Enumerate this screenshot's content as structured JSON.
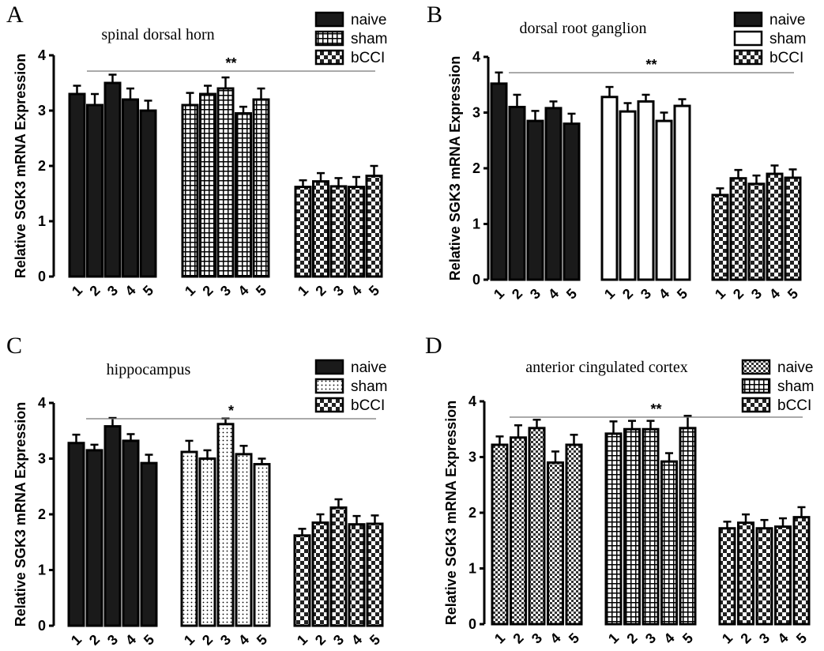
{
  "colors": {
    "ink": "#000000",
    "background": "#ffffff",
    "bar_dark": "#1a1a1a",
    "bracket": "#777777"
  },
  "chart_data": [
    {
      "panel": "A",
      "type": "bar",
      "title": "spinal dorsal horn",
      "ylabel": "Relative SGK3 mRNA Expression",
      "ylim": [
        0,
        4
      ],
      "yticks": [
        "0",
        "1",
        "2",
        "3",
        "4"
      ],
      "significance": "**",
      "legend_position": "top-right",
      "categories": [
        "1",
        "2",
        "3",
        "4",
        "5"
      ],
      "series": [
        {
          "name": "naive",
          "pattern": "solid",
          "values": [
            3.3,
            3.1,
            3.5,
            3.2,
            3.0
          ],
          "errors": [
            0.15,
            0.2,
            0.15,
            0.2,
            0.18
          ]
        },
        {
          "name": "sham",
          "pattern": "grid",
          "values": [
            3.1,
            3.3,
            3.4,
            2.95,
            3.2
          ],
          "errors": [
            0.22,
            0.15,
            0.2,
            0.12,
            0.2
          ]
        },
        {
          "name": "bCCI",
          "pattern": "checker",
          "values": [
            1.62,
            1.72,
            1.63,
            1.62,
            1.82
          ],
          "errors": [
            0.12,
            0.15,
            0.15,
            0.18,
            0.18
          ]
        }
      ]
    },
    {
      "panel": "B",
      "type": "bar",
      "title": "dorsal root ganglion",
      "ylabel": "Relative SGK3 mRNA Expression",
      "ylim": [
        0,
        4
      ],
      "yticks": [
        "0",
        "1",
        "2",
        "3",
        "4"
      ],
      "significance": "**",
      "legend_position": "top-right",
      "categories": [
        "1",
        "2",
        "3",
        "4",
        "5"
      ],
      "series": [
        {
          "name": "naive",
          "pattern": "solid",
          "values": [
            3.52,
            3.1,
            2.85,
            3.08,
            2.8
          ],
          "errors": [
            0.2,
            0.22,
            0.18,
            0.12,
            0.18
          ]
        },
        {
          "name": "sham",
          "pattern": "white",
          "values": [
            3.28,
            3.02,
            3.2,
            2.85,
            3.12
          ],
          "errors": [
            0.18,
            0.15,
            0.12,
            0.15,
            0.12
          ]
        },
        {
          "name": "bCCI",
          "pattern": "checker",
          "values": [
            1.52,
            1.82,
            1.72,
            1.9,
            1.83
          ],
          "errors": [
            0.12,
            0.15,
            0.15,
            0.15,
            0.15
          ]
        }
      ]
    },
    {
      "panel": "C",
      "type": "bar",
      "title": "hippocampus",
      "ylabel": "Relative SGK3 mRNA Expression",
      "ylim": [
        0,
        4
      ],
      "yticks": [
        "0",
        "1",
        "2",
        "3",
        "4"
      ],
      "significance": "*",
      "legend_position": "top-right",
      "categories": [
        "1",
        "2",
        "3",
        "4",
        "5"
      ],
      "series": [
        {
          "name": "naive",
          "pattern": "solid",
          "values": [
            3.28,
            3.15,
            3.58,
            3.32,
            2.92
          ],
          "errors": [
            0.15,
            0.1,
            0.15,
            0.12,
            0.15
          ]
        },
        {
          "name": "sham",
          "pattern": "dots",
          "values": [
            3.12,
            3.0,
            3.62,
            3.08,
            2.9
          ],
          "errors": [
            0.2,
            0.15,
            0.1,
            0.15,
            0.1
          ]
        },
        {
          "name": "bCCI",
          "pattern": "checker",
          "values": [
            1.62,
            1.85,
            2.12,
            1.82,
            1.83
          ],
          "errors": [
            0.12,
            0.15,
            0.15,
            0.15,
            0.15
          ]
        }
      ]
    },
    {
      "panel": "D",
      "type": "bar",
      "title": "anterior cingulated cortex",
      "ylabel": "Relative SGK3 mRNA Expression",
      "ylim": [
        0,
        4
      ],
      "yticks": [
        "0",
        "1",
        "2",
        "3",
        "4"
      ],
      "significance": "**",
      "legend_position": "top-right",
      "categories": [
        "1",
        "2",
        "3",
        "4",
        "5"
      ],
      "series": [
        {
          "name": "naive",
          "pattern": "finecheck",
          "values": [
            3.22,
            3.35,
            3.52,
            2.9,
            3.22
          ],
          "errors": [
            0.15,
            0.22,
            0.15,
            0.2,
            0.18
          ]
        },
        {
          "name": "sham",
          "pattern": "grid",
          "values": [
            3.42,
            3.5,
            3.5,
            2.92,
            3.52
          ],
          "errors": [
            0.22,
            0.15,
            0.15,
            0.15,
            0.22
          ]
        },
        {
          "name": "bCCI",
          "pattern": "checker",
          "values": [
            1.72,
            1.82,
            1.72,
            1.75,
            1.92
          ],
          "errors": [
            0.12,
            0.15,
            0.15,
            0.15,
            0.18
          ]
        }
      ]
    }
  ]
}
